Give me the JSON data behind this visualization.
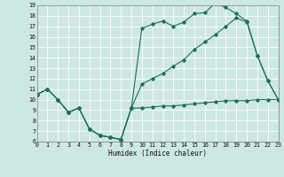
{
  "xlabel": "Humidex (Indice chaleur)",
  "bg_color": "#cde8e2",
  "line_color": "#1e6e5c",
  "grid_color": "#ffffff",
  "xlim": [
    0,
    23
  ],
  "ylim": [
    6,
    19
  ],
  "xticks": [
    0,
    1,
    2,
    3,
    4,
    5,
    6,
    7,
    8,
    9,
    10,
    11,
    12,
    13,
    14,
    15,
    16,
    17,
    18,
    19,
    20,
    21,
    22,
    23
  ],
  "yticks": [
    6,
    7,
    8,
    9,
    10,
    11,
    12,
    13,
    14,
    15,
    16,
    17,
    18,
    19
  ],
  "series": [
    {
      "x": [
        0,
        1,
        2,
        3,
        4,
        5,
        6,
        7,
        8,
        9,
        10,
        11,
        12,
        13,
        14,
        15,
        16,
        17,
        18,
        19,
        20,
        21,
        22,
        23
      ],
      "y": [
        10.5,
        11.0,
        10.0,
        8.8,
        9.2,
        7.2,
        6.6,
        6.4,
        6.2,
        9.2,
        16.8,
        17.2,
        17.5,
        17.0,
        17.4,
        18.2,
        18.3,
        19.2,
        18.8,
        18.2,
        17.5,
        14.2,
        11.8,
        10.0
      ]
    },
    {
      "x": [
        0,
        1,
        2,
        3,
        4,
        5,
        6,
        7,
        8,
        9,
        10,
        11,
        12,
        13,
        14,
        15,
        16,
        17,
        18,
        19,
        20,
        21,
        22,
        23
      ],
      "y": [
        10.5,
        11.0,
        10.0,
        8.8,
        9.2,
        7.2,
        6.6,
        6.4,
        6.2,
        9.2,
        11.5,
        12.0,
        12.5,
        13.2,
        13.8,
        14.8,
        15.5,
        16.2,
        17.0,
        17.8,
        17.4,
        14.2,
        11.8,
        10.0
      ]
    },
    {
      "x": [
        0,
        1,
        2,
        3,
        4,
        5,
        6,
        7,
        8,
        9,
        10,
        11,
        12,
        13,
        14,
        15,
        16,
        17,
        18,
        19,
        20,
        21,
        22,
        23
      ],
      "y": [
        10.5,
        11.0,
        10.0,
        8.8,
        9.2,
        7.2,
        6.6,
        6.4,
        6.2,
        9.2,
        9.2,
        9.3,
        9.4,
        9.4,
        9.5,
        9.6,
        9.7,
        9.8,
        9.9,
        9.9,
        9.9,
        10.0,
        10.0,
        10.0
      ]
    }
  ]
}
